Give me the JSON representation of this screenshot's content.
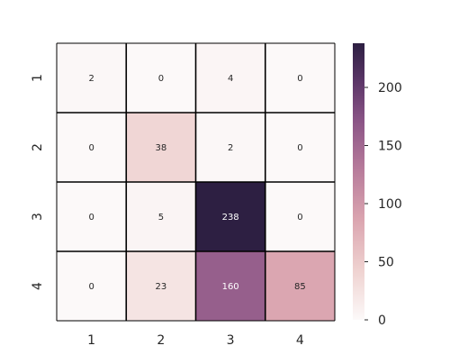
{
  "chart_data": {
    "type": "heatmap",
    "title": "",
    "xlabel": "",
    "ylabel": "",
    "x_categories": [
      "1",
      "2",
      "3",
      "4"
    ],
    "y_categories": [
      "1",
      "2",
      "3",
      "4"
    ],
    "values": [
      [
        2,
        0,
        4,
        0
      ],
      [
        0,
        38,
        2,
        0
      ],
      [
        0,
        5,
        238,
        0
      ],
      [
        0,
        23,
        160,
        85
      ]
    ],
    "annotations": true,
    "colorbar": {
      "range": [
        0,
        238
      ],
      "ticks": [
        0,
        50,
        100,
        150,
        200
      ],
      "tick_labels": [
        "0",
        "50",
        "100",
        "150",
        "200"
      ],
      "placement": "right"
    },
    "colormap": {
      "name": "cubehelix light",
      "stops": [
        [
          0.0,
          "#fcf9f9"
        ],
        [
          0.18,
          "#efd2d0"
        ],
        [
          0.36,
          "#dba5b0"
        ],
        [
          0.55,
          "#b67a9a"
        ],
        [
          0.72,
          "#8a5486"
        ],
        [
          0.86,
          "#5c3668"
        ],
        [
          1.0,
          "#2d1f42"
        ]
      ]
    },
    "grid_lines": "black",
    "text_colors": {
      "light_cell": "#262626",
      "dark_cell": "#ffffff"
    }
  }
}
